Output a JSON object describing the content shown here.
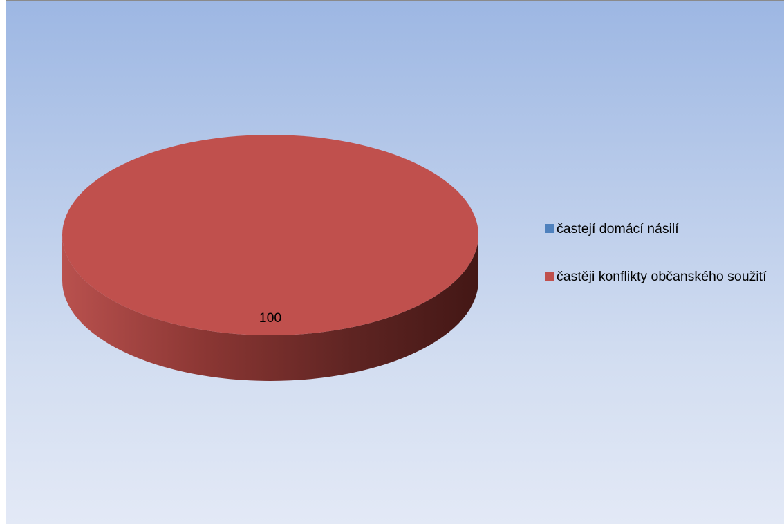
{
  "chart_data": {
    "type": "pie",
    "title": "",
    "categories": [
      "častejí domácí násilí",
      "častěji konflikty občanského soužití"
    ],
    "values": [
      0,
      100
    ],
    "data_labels": [
      "",
      "100"
    ],
    "colors": [
      "#4f81bd",
      "#c0504d"
    ],
    "legend_position": "right",
    "style": "3d"
  },
  "legend": {
    "items": [
      {
        "label": "častejí domácí násilí",
        "color": "#4f81bd"
      },
      {
        "label": "častěji konflikty občanského soužití",
        "color": "#c0504d"
      }
    ]
  }
}
